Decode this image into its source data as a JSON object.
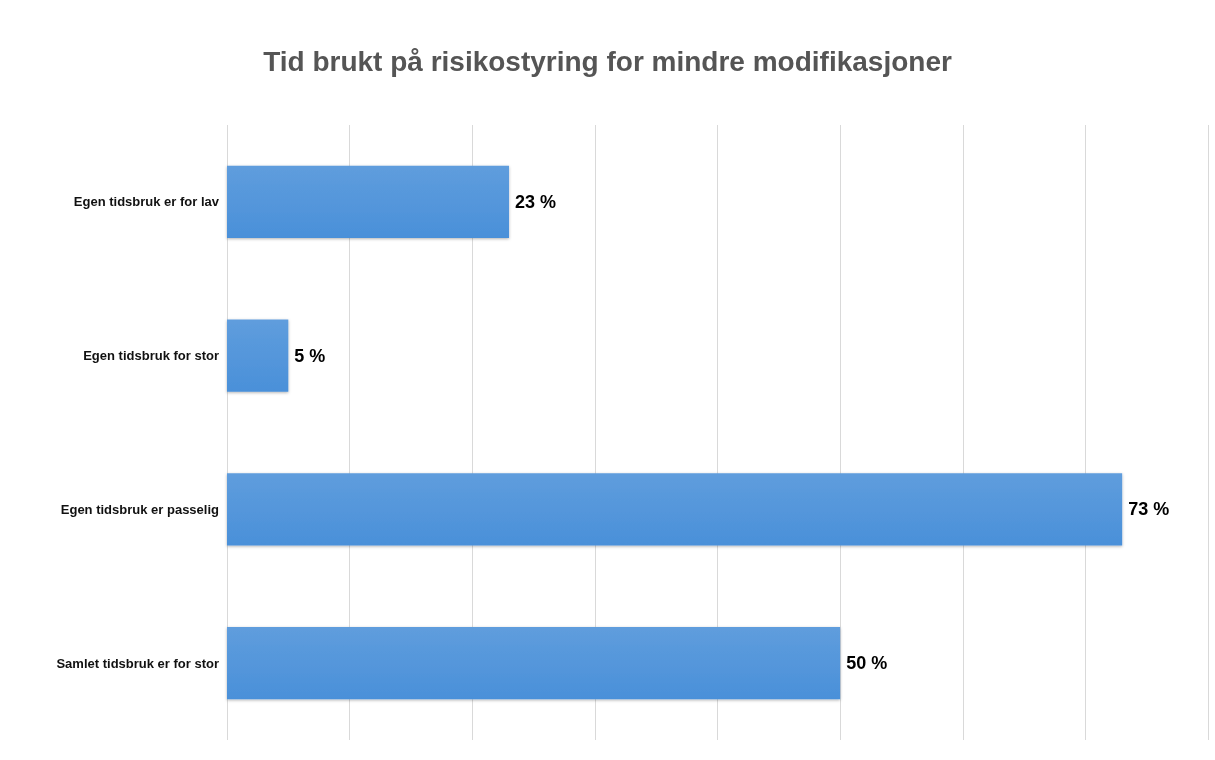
{
  "chart_data": {
    "type": "bar",
    "orientation": "horizontal",
    "title": "Tid brukt på risikostyring for mindre modifikasjoner",
    "categories": [
      "Egen tidsbruk er for lav",
      "Egen tidsbruk for stor",
      "Egen tidsbruk er passelig",
      "Samlet tidsbruk er for stor"
    ],
    "values": [
      23,
      5,
      73,
      50
    ],
    "value_labels": [
      "23 %",
      "5 %",
      "73 %",
      "50 %"
    ],
    "color": "#4a90d9",
    "xlim": [
      0,
      80
    ],
    "xticks": [
      {
        "value": 0,
        "label": null
      },
      {
        "value": 10,
        "label": null
      },
      {
        "value": 20,
        "label": null
      },
      {
        "value": 30,
        "label": null
      },
      {
        "value": 40,
        "label": null
      },
      {
        "value": 50,
        "label": null
      },
      {
        "value": 60,
        "label": null
      },
      {
        "value": 70,
        "label": null
      },
      {
        "value": 80,
        "label": null
      }
    ],
    "grid": "x",
    "tick_labels": "y"
  }
}
